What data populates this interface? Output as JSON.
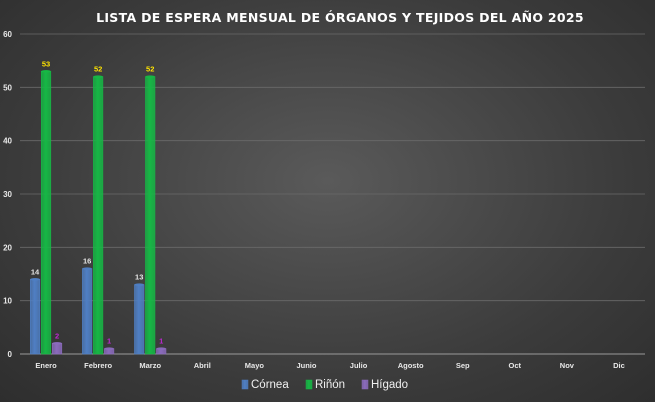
{
  "chart_data": {
    "type": "bar",
    "title": "LISTA DE ESPERA MENSUAL DE ÓRGANOS Y TEJIDOS  DEL AÑO 2025",
    "xlabel": "",
    "ylabel": "",
    "categories": [
      "Enero",
      "Febrero",
      "Marzo",
      "Abril",
      "Mayo",
      "Junio",
      "Julio",
      "Agosto",
      "Sep",
      "Oct",
      "Nov",
      "Dic"
    ],
    "ylim": [
      0,
      60
    ],
    "yticks": [
      0,
      10,
      20,
      30,
      40,
      50,
      60
    ],
    "grid": true,
    "legend_position": "bottom",
    "series": [
      {
        "name": "Córnea",
        "values": [
          14,
          16,
          13,
          null,
          null,
          null,
          null,
          null,
          null,
          null,
          null,
          null
        ],
        "labels": [
          "14",
          "16",
          "13"
        ],
        "color": "#4f7fc4",
        "label_color": "#e6e6e6"
      },
      {
        "name": "Riñón",
        "values": [
          53,
          52,
          52,
          null,
          null,
          null,
          null,
          null,
          null,
          null,
          null,
          null
        ],
        "labels": [
          "53",
          "52",
          "52"
        ],
        "color": "#16b845",
        "label_color": "#ffe400"
      },
      {
        "name": "Hígado",
        "values": [
          2,
          1,
          1,
          null,
          null,
          null,
          null,
          null,
          null,
          null,
          null,
          null
        ],
        "labels": [
          "2",
          "1",
          "1"
        ],
        "color": "#8b6bbd",
        "label_color": "#c026d3"
      }
    ]
  }
}
